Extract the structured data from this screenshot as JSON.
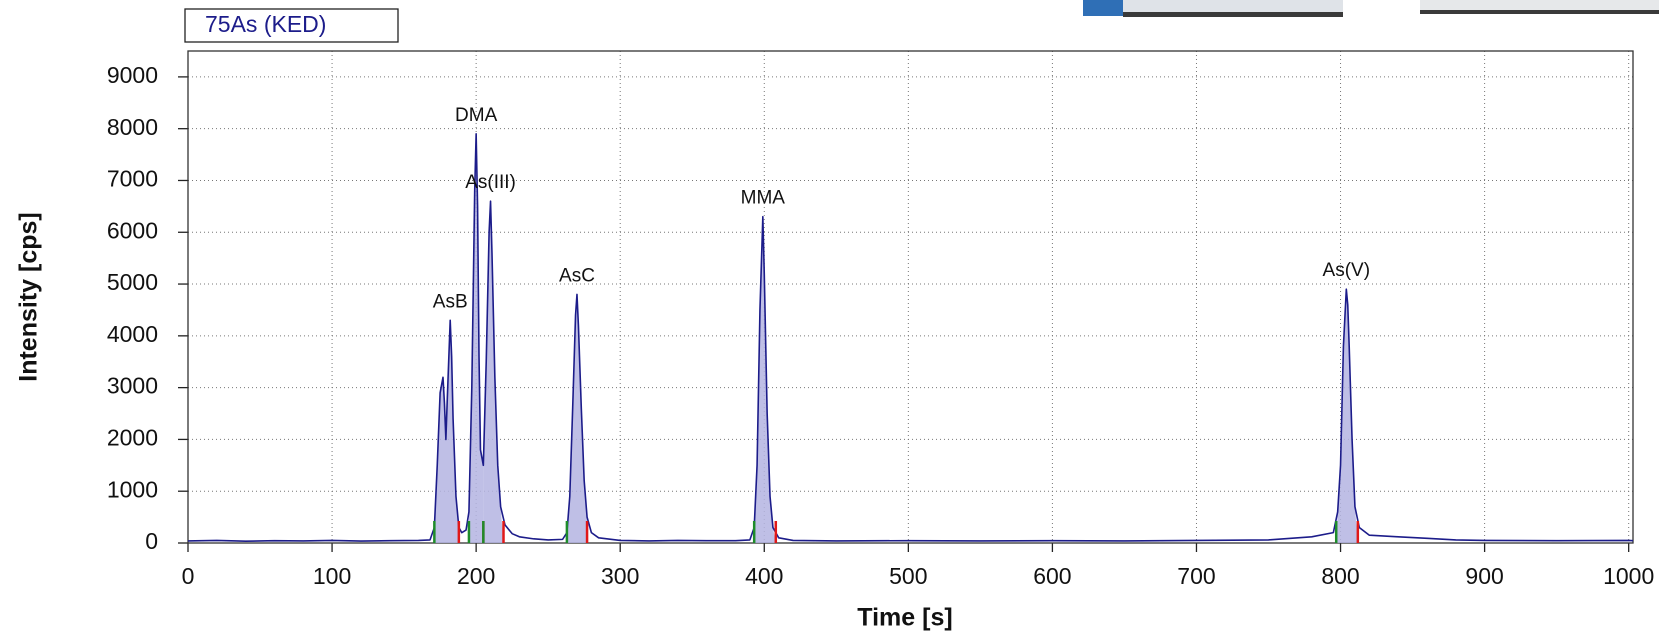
{
  "chart_data": {
    "type": "line",
    "x_label": "Time [s]",
    "y_label": "Intensity [cps]",
    "xlim": [
      0,
      1003
    ],
    "ylim": [
      0,
      9500
    ],
    "xticks": [
      0,
      100,
      200,
      300,
      400,
      500,
      600,
      700,
      800,
      900,
      1000
    ],
    "yticks": [
      0,
      1000,
      2000,
      3000,
      4000,
      5000,
      6000,
      7000,
      8000,
      9000
    ],
    "grid": true,
    "x": [
      0,
      20,
      40,
      60,
      80,
      100,
      120,
      140,
      160,
      168,
      171,
      173,
      175,
      177,
      178,
      179,
      180,
      182,
      183,
      184,
      186,
      188,
      190,
      193,
      195,
      197,
      199,
      200,
      201,
      202,
      203,
      205,
      207,
      209,
      210,
      211,
      213,
      215,
      217,
      220,
      225,
      230,
      240,
      250,
      260,
      263,
      265,
      267,
      269,
      270,
      271,
      273,
      275,
      277,
      280,
      285,
      300,
      320,
      340,
      360,
      380,
      390,
      393,
      395,
      397,
      399,
      400,
      402,
      404,
      406,
      410,
      420,
      450,
      500,
      550,
      600,
      650,
      700,
      750,
      780,
      795,
      798,
      800,
      802,
      804,
      805,
      806,
      808,
      810,
      813,
      820,
      840,
      860,
      880,
      900,
      950,
      1000,
      1003
    ],
    "series": [
      {
        "name": "75As (KED)",
        "color": "#1c1c8a",
        "fill": "#b4b4e2",
        "values": [
          40,
          50,
          35,
          45,
          40,
          50,
          38,
          45,
          50,
          60,
          300,
          1500,
          2900,
          3200,
          2700,
          2000,
          2800,
          4300,
          3600,
          2400,
          900,
          300,
          200,
          250,
          600,
          3000,
          6800,
          7900,
          6500,
          3600,
          1800,
          1500,
          3500,
          6000,
          6600,
          5600,
          3200,
          1500,
          700,
          350,
          180,
          120,
          80,
          60,
          70,
          200,
          900,
          2600,
          4400,
          4800,
          4200,
          2600,
          1200,
          500,
          200,
          100,
          50,
          40,
          50,
          45,
          45,
          60,
          300,
          1500,
          4500,
          6300,
          5200,
          2500,
          900,
          300,
          100,
          50,
          40,
          45,
          40,
          45,
          40,
          50,
          60,
          120,
          200,
          600,
          1500,
          3800,
          4900,
          4600,
          3800,
          2000,
          700,
          300,
          150,
          120,
          90,
          60,
          50,
          45,
          50,
          45
        ]
      }
    ],
    "peaks": [
      {
        "label": "AsB",
        "x": 182,
        "y": 4300,
        "start": 171,
        "end": 188
      },
      {
        "label": "DMA",
        "x": 200,
        "y": 7900,
        "start": 195,
        "end": 205
      },
      {
        "label": "As(III)",
        "x": 210,
        "y": 6600,
        "start": 205,
        "end": 219
      },
      {
        "label": "AsC",
        "x": 270,
        "y": 4800,
        "start": 263,
        "end": 277
      },
      {
        "label": "MMA",
        "x": 399,
        "y": 6300,
        "start": 393,
        "end": 408
      },
      {
        "label": "As(V)",
        "x": 804,
        "y": 4900,
        "start": 797,
        "end": 812
      }
    ],
    "start_color": "#1e8c2a",
    "end_color": "#e01818"
  }
}
